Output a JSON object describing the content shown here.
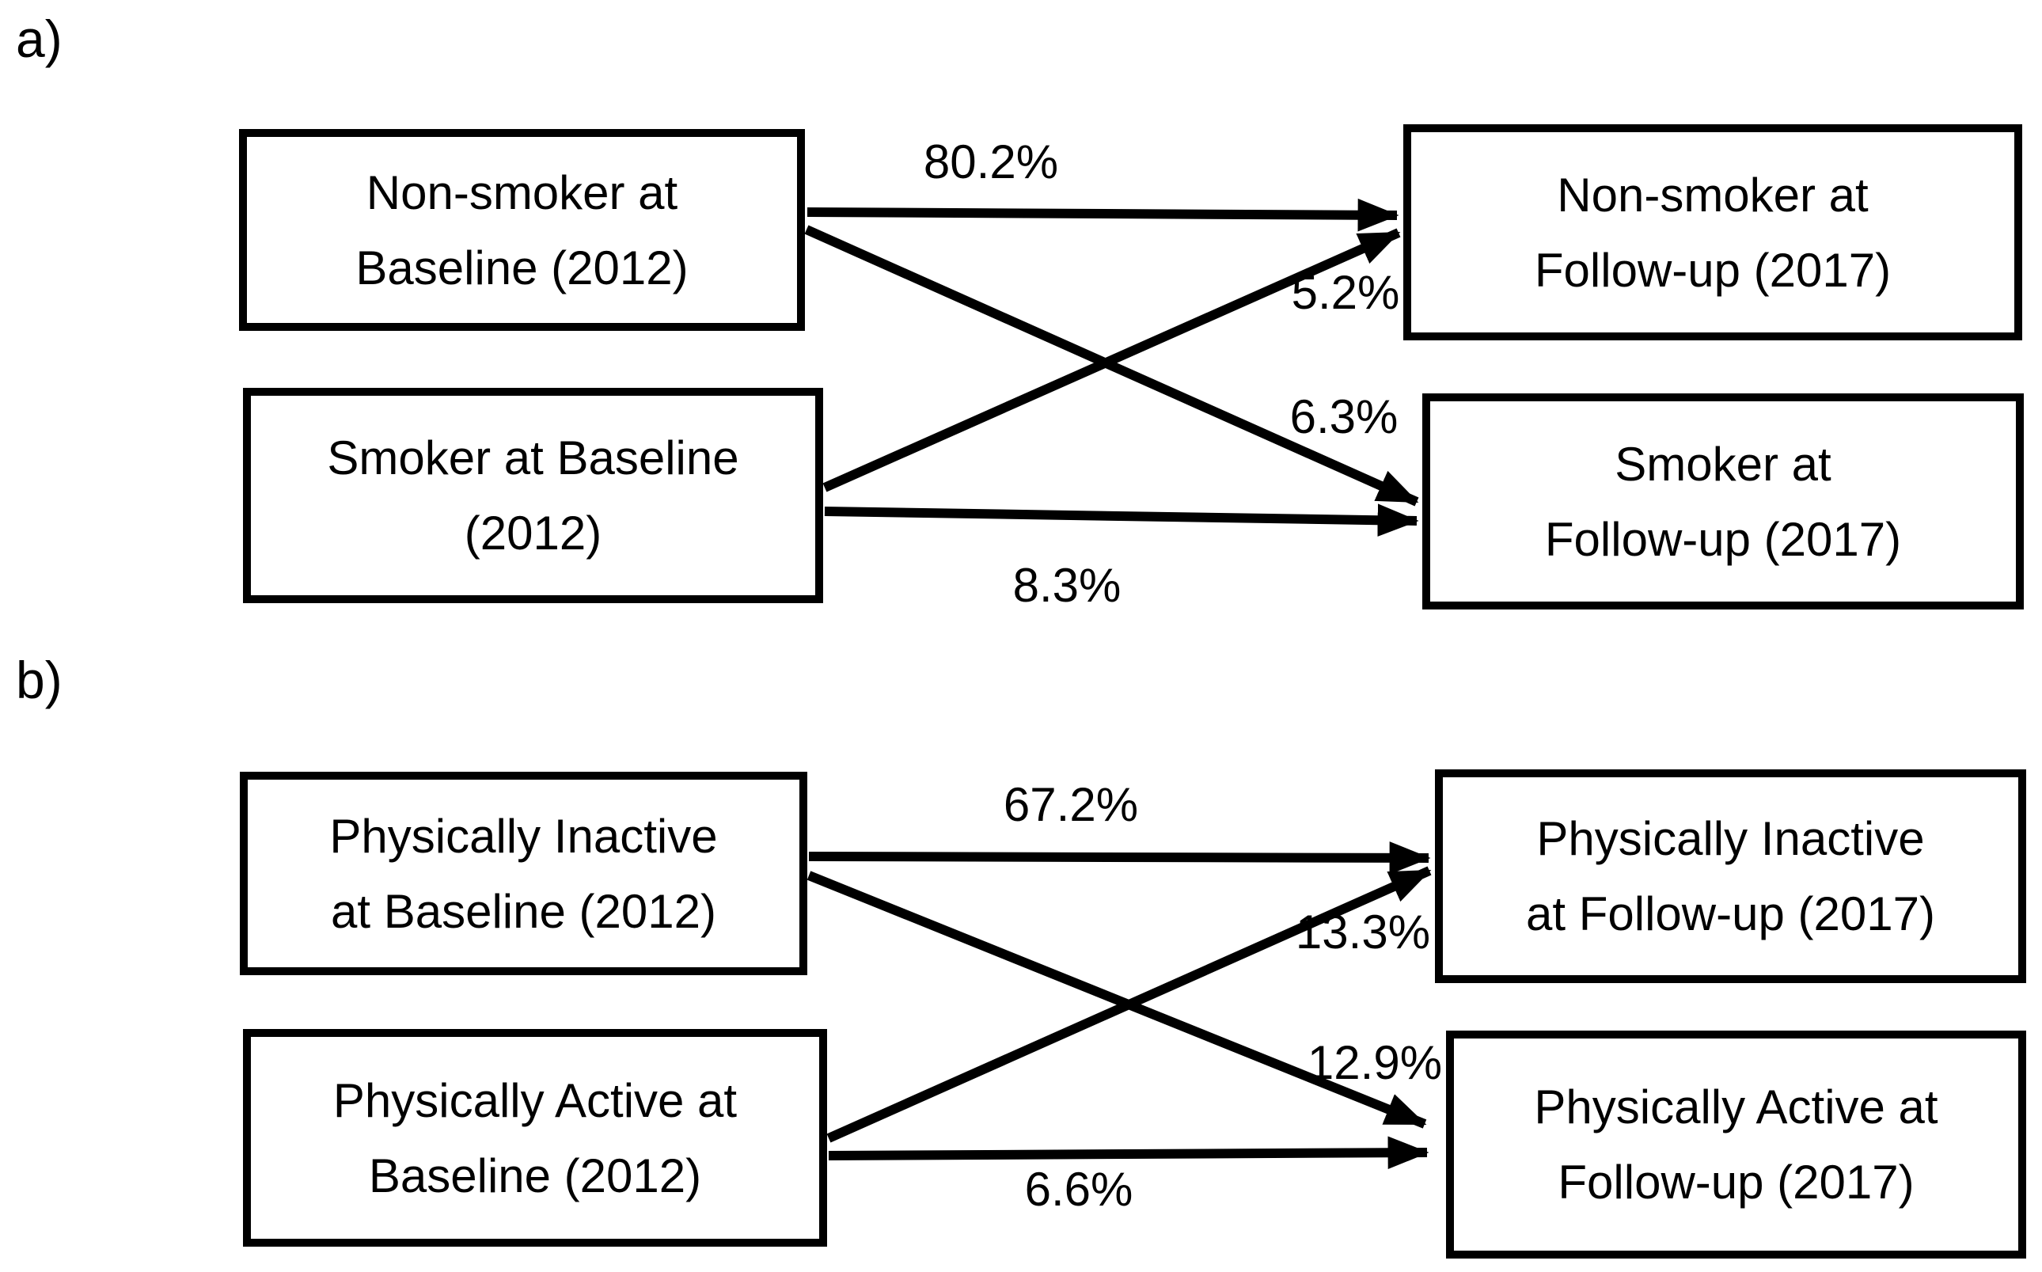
{
  "figure": {
    "colors": {
      "ink": "#000000",
      "background": "#ffffff"
    },
    "panels": [
      {
        "id": "a",
        "label": "a)",
        "boxes": [
          {
            "id": "nonsmoker-baseline",
            "line1": "Non-smoker at",
            "line2": "Baseline (2012)"
          },
          {
            "id": "smoker-baseline",
            "line1": "Smoker at Baseline",
            "line2": "(2012)"
          },
          {
            "id": "nonsmoker-followup",
            "line1": "Non-smoker at",
            "line2": "Follow-up (2017)"
          },
          {
            "id": "smoker-followup",
            "line1": "Smoker at",
            "line2": "Follow-up (2017)"
          }
        ],
        "transitions": [
          {
            "from": "nonsmoker-baseline",
            "to": "nonsmoker-followup",
            "value": "80.2%"
          },
          {
            "from": "smoker-baseline",
            "to": "nonsmoker-followup",
            "value": "5.2%"
          },
          {
            "from": "nonsmoker-baseline",
            "to": "smoker-followup",
            "value": "6.3%"
          },
          {
            "from": "smoker-baseline",
            "to": "smoker-followup",
            "value": "8.3%"
          }
        ]
      },
      {
        "id": "b",
        "label": "b)",
        "boxes": [
          {
            "id": "inactive-baseline",
            "line1": "Physically Inactive",
            "line2": "at Baseline (2012)"
          },
          {
            "id": "active-baseline",
            "line1": "Physically Active at",
            "line2": "Baseline (2012)"
          },
          {
            "id": "inactive-followup",
            "line1": "Physically Inactive",
            "line2": "at Follow-up (2017)"
          },
          {
            "id": "active-followup",
            "line1": "Physically Active at",
            "line2": "Follow-up (2017)"
          }
        ],
        "transitions": [
          {
            "from": "inactive-baseline",
            "to": "inactive-followup",
            "value": "67.2%"
          },
          {
            "from": "active-baseline",
            "to": "inactive-followup",
            "value": "13.3%"
          },
          {
            "from": "inactive-baseline",
            "to": "active-followup",
            "value": "12.9%"
          },
          {
            "from": "active-baseline",
            "to": "active-followup",
            "value": "6.6%"
          }
        ]
      }
    ]
  }
}
